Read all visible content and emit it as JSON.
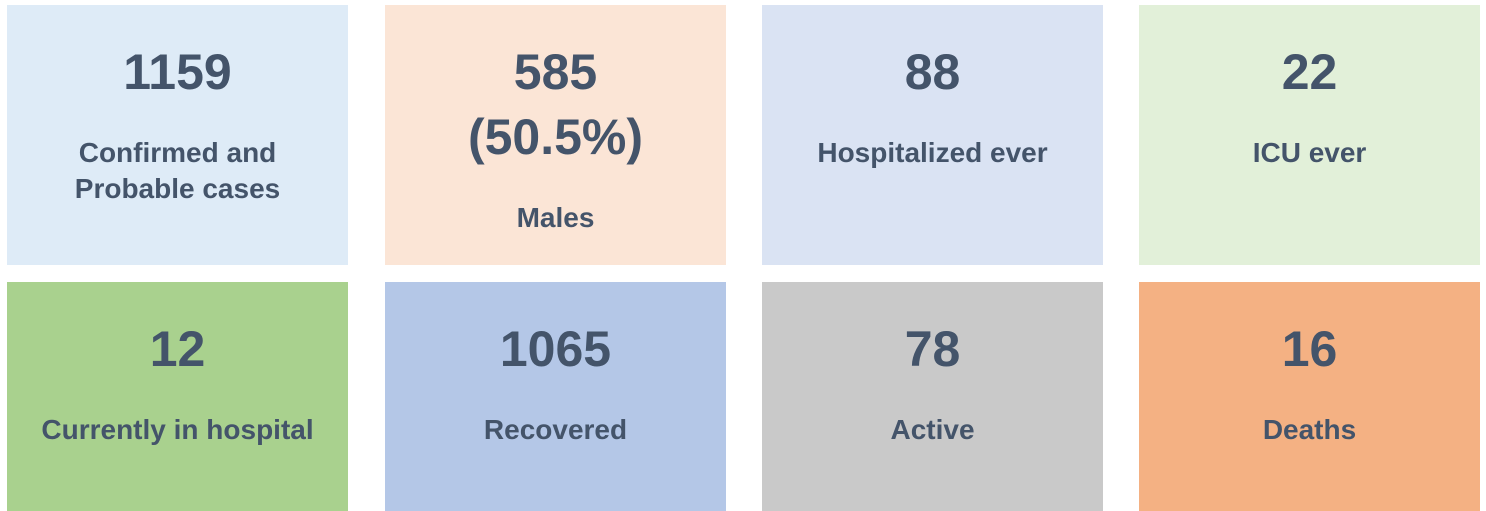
{
  "tiles": [
    {
      "value": 1159,
      "label": "Confirmed and Probable cases",
      "color": "#deebf7"
    },
    {
      "value": 585,
      "share_label": "(50.5%)",
      "label": "Males",
      "color": "#fbe5d6"
    },
    {
      "value": 88,
      "label": "Hospitalized ever",
      "color": "#dae3f3"
    },
    {
      "value": 22,
      "label": "ICU ever",
      "color": "#e2f0d9"
    },
    {
      "value": 12,
      "label": "Currently in hospital",
      "color": "#a9d18e"
    },
    {
      "value": 1065,
      "label": "Recovered",
      "color": "#b4c7e7"
    },
    {
      "value": 78,
      "label": "Active",
      "color": "#c9c9c9"
    },
    {
      "value": 16,
      "label": "Deaths",
      "color": "#f4b183"
    }
  ]
}
